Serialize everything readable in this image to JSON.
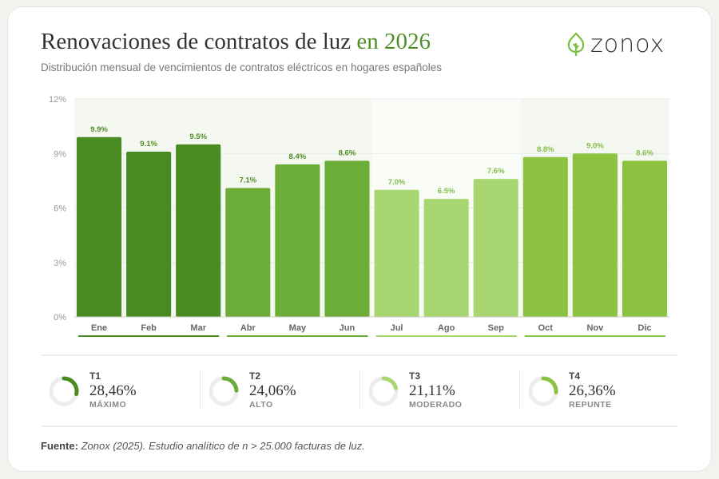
{
  "header": {
    "title": "Renovaciones de contratos de luz",
    "title_highlight": "en 2026",
    "subtitle": "Distribución mensual de vencimientos de contratos eléctricos en hogares españoles",
    "logo": "zonox"
  },
  "colors": {
    "q1": "#4a8a22",
    "q2": "#6cad38",
    "q3": "#a8d670",
    "q4": "#8bc341",
    "label_dark": "#4f8f25",
    "label_light": "#7fbf45"
  },
  "chart_data": {
    "type": "bar",
    "title": "Renovaciones de contratos de luz en 2026",
    "xlabel": "",
    "ylabel": "",
    "ylim": [
      0,
      12
    ],
    "yticks": [
      "0%",
      "3%",
      "6%",
      "9%",
      "12%"
    ],
    "ytick_values": [
      0,
      3,
      6,
      9,
      12
    ],
    "categories": [
      "Ene",
      "Feb",
      "Mar",
      "Abr",
      "May",
      "Jun",
      "Jul",
      "Ago",
      "Sep",
      "Oct",
      "Nov",
      "Dic"
    ],
    "values": [
      9.9,
      9.1,
      9.5,
      7.1,
      8.4,
      8.6,
      7.0,
      6.5,
      7.6,
      8.8,
      9.0,
      8.6
    ],
    "labels": [
      "9.9%",
      "9.1%",
      "9.5%",
      "7.1%",
      "8.4%",
      "8.6%",
      "7.0%",
      "6.5%",
      "7.6%",
      "8.8%",
      "9.0%",
      "8.6%"
    ],
    "quarter": [
      1,
      1,
      1,
      2,
      2,
      2,
      3,
      3,
      3,
      4,
      4,
      4
    ],
    "grid": true
  },
  "quarters": [
    {
      "name": "T1",
      "value": "28,46%",
      "fraction": 0.2846,
      "label": "MÁXIMO"
    },
    {
      "name": "T2",
      "value": "24,06%",
      "fraction": 0.2406,
      "label": "ALTO"
    },
    {
      "name": "T3",
      "value": "21,11%",
      "fraction": 0.2111,
      "label": "MODERADO"
    },
    {
      "name": "T4",
      "value": "26,36%",
      "fraction": 0.2636,
      "label": "REPUNTE"
    }
  ],
  "source": {
    "label": "Fuente:",
    "text": "Zonox (2025). Estudio analítico de n > 25.000 facturas de luz."
  }
}
